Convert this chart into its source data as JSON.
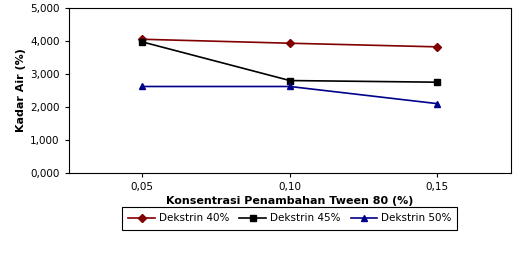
{
  "x_values": [
    0.05,
    0.1,
    0.15
  ],
  "x_tick_labels": [
    "0,05",
    "0,10",
    "0,15"
  ],
  "series": [
    {
      "label": "Dekstrin 40%",
      "color": "#800000",
      "marker": "D",
      "markersize": 4,
      "values": [
        4.05,
        3.93,
        3.82
      ]
    },
    {
      "label": "Dekstrin 45%",
      "color": "#000000",
      "marker": "s",
      "markersize": 4,
      "values": [
        3.97,
        2.8,
        2.75
      ]
    },
    {
      "label": "Dekstrin 50%",
      "color": "#00008B",
      "marker": "^",
      "markersize": 4,
      "values": [
        2.62,
        2.62,
        2.1
      ]
    }
  ],
  "xlabel": "Konsentrasi Penambahan Tween 80 (%)",
  "ylabel": "Kadar Air (%)",
  "ylim": [
    0,
    5.0
  ],
  "yticks": [
    0.0,
    1.0,
    2.0,
    3.0,
    4.0,
    5.0
  ],
  "ytick_labels": [
    "0,000",
    "1,000",
    "2,000",
    "3,000",
    "4,000",
    "5,000"
  ],
  "background_color": "#ffffff",
  "border_color": "#000000",
  "axis_fontsize": 8,
  "tick_fontsize": 7.5,
  "legend_fontsize": 7.5,
  "line_width": 1.2
}
